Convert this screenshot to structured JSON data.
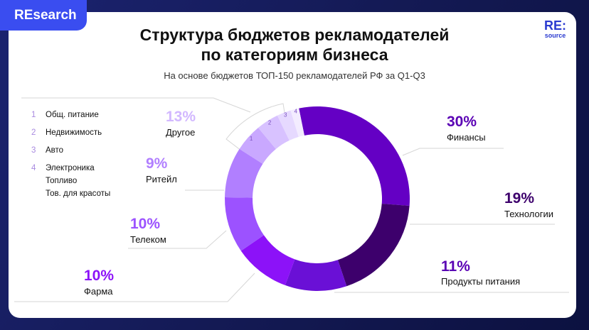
{
  "badge": "REsearch",
  "logo": {
    "main": "RE:",
    "sub": "source"
  },
  "title_line1": "Структура бюджетов рекламодателей",
  "title_line2": "по категориям бизнеса",
  "subtitle": "На основе бюджетов ТОП-150 рекламодателей РФ за Q1-Q3",
  "legend": [
    {
      "num": "1",
      "label": "Общ. питание"
    },
    {
      "num": "2",
      "label": "Недвижимость"
    },
    {
      "num": "3",
      "label": "Авто"
    },
    {
      "num": "4",
      "label": "Электроника"
    },
    {
      "num": "",
      "label": "Топливо"
    },
    {
      "num": "",
      "label": "Тов. для красоты"
    }
  ],
  "chart_data": {
    "type": "pie",
    "variant": "donut",
    "title": "Структура бюджетов рекламодателей по категориям бизнеса",
    "subtitle": "На основе бюджетов ТОП-150 рекламодателей РФ за Q1-Q3",
    "slices": [
      {
        "label": "Финансы",
        "value": 30,
        "display": "30%",
        "color": "#6400c4"
      },
      {
        "label": "Технологии",
        "value": 19,
        "display": "19%",
        "color": "#3d006c"
      },
      {
        "label": "Продукты питания",
        "value": 11,
        "display": "11%",
        "color": "#6a10d6"
      },
      {
        "label": "Фарма",
        "value": 10,
        "display": "10%",
        "color": "#8c12f8"
      },
      {
        "label": "Телеком",
        "value": 10,
        "display": "10%",
        "color": "#9c52ff"
      },
      {
        "label": "Ритейл",
        "value": 9,
        "display": "9%",
        "color": "#b17fff"
      },
      {
        "label": "Другое",
        "value": 13,
        "display": "13%",
        "color": "#c9a8ff"
      }
    ],
    "other_breakdown": [
      {
        "num": "1",
        "value": 5,
        "color": "#c9a8ff"
      },
      {
        "num": "2",
        "value": 4,
        "color": "#d8c2ff"
      },
      {
        "num": "3",
        "value": 2.5,
        "color": "#e6d9ff"
      },
      {
        "num": "4",
        "value": 1.5,
        "color": "#f3ecff"
      }
    ]
  }
}
